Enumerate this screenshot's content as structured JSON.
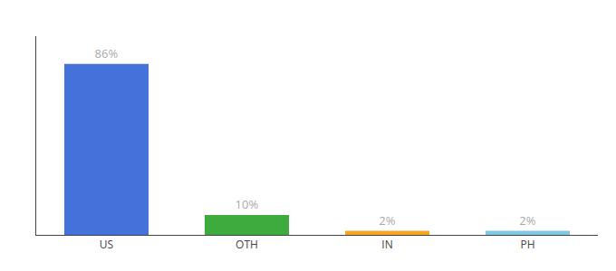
{
  "chart_data": {
    "type": "bar",
    "categories": [
      "US",
      "OTH",
      "IN",
      "PH"
    ],
    "values": [
      86,
      10,
      2,
      2
    ],
    "value_labels": [
      "86%",
      "10%",
      "2%",
      "2%"
    ],
    "colors": [
      "#4472db",
      "#3dab3d",
      "#f5a623",
      "#7ec8e3"
    ],
    "ylim": [
      0,
      100
    ],
    "grid": false,
    "data_labels": true,
    "tick_labels": "x"
  }
}
